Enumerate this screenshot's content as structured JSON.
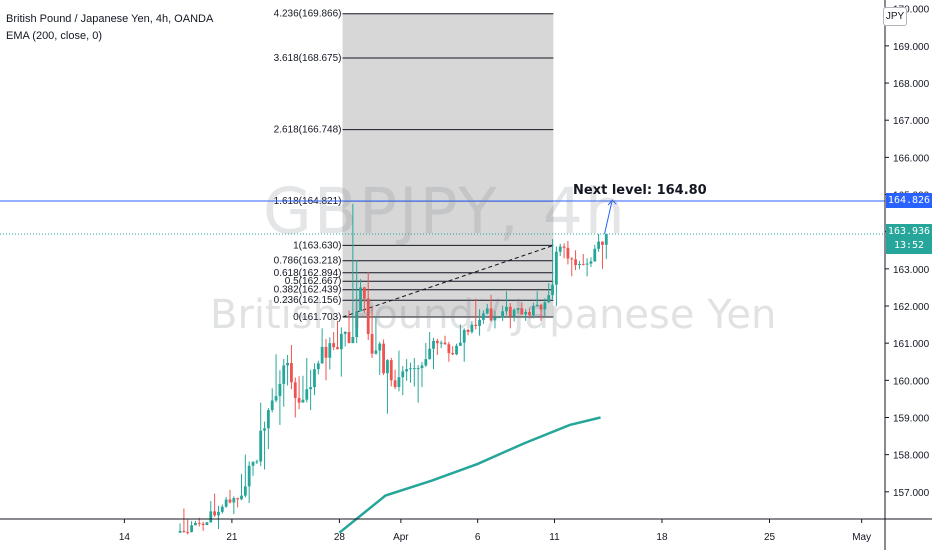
{
  "legend": {
    "title": "British Pound / Japanese Yen, 4h, OANDA",
    "indicator": "EMA (200, close, 0)"
  },
  "currency_badge": "JPY",
  "watermark": {
    "symbol": "GBPJPY, 4h",
    "name": "British Pound / Japanese Yen"
  },
  "annotation": {
    "text": "Next level: 164.80"
  },
  "price_tags": {
    "target": "164.826",
    "last_price": "163.936",
    "countdown": "13:52"
  },
  "colors": {
    "up": "#26a69a",
    "down": "#ef5350",
    "ema": "#26a69a",
    "fib_box": "#c9c9c9",
    "target_line": "#2962ff",
    "axis_text": "#131722"
  },
  "chart_data": {
    "type": "candlestick",
    "y_axis": {
      "ylim": [
        156.08,
        170.1
      ],
      "ticks": [
        157,
        158,
        159,
        160,
        161,
        162,
        163,
        164,
        165,
        166,
        167,
        168,
        169,
        170
      ],
      "tick_labels": [
        "157.000",
        "158.000",
        "159.000",
        "160.000",
        "161.000",
        "162.000",
        "163.000",
        "164.000",
        "165.000",
        "166.000",
        "167.000",
        "168.000",
        "169.000",
        "170.000"
      ]
    },
    "x_axis": {
      "labels": [
        "14",
        "21",
        "28",
        "Apr",
        "6",
        "11",
        "18",
        "25",
        "May"
      ],
      "label_days": [
        -17,
        -10,
        -3,
        1,
        6,
        11,
        18,
        25,
        31
      ]
    },
    "candles_daily_ohlc": [
      {
        "day": -13,
        "o": 155.9,
        "h": 156.55,
        "l": 155.85,
        "c": 156.1
      },
      {
        "day": -12,
        "o": 156.1,
        "h": 156.3,
        "l": 155.95,
        "c": 156.18
      },
      {
        "day": -11,
        "o": 156.18,
        "h": 156.95,
        "l": 156.0,
        "c": 156.6
      },
      {
        "day": -10,
        "o": 156.6,
        "h": 157.05,
        "l": 156.4,
        "c": 156.8
      },
      {
        "day": -9,
        "o": 156.8,
        "h": 158.0,
        "l": 156.7,
        "c": 157.8
      },
      {
        "day": -8,
        "o": 157.8,
        "h": 159.4,
        "l": 157.6,
        "c": 159.2
      },
      {
        "day": -7,
        "o": 159.2,
        "h": 160.7,
        "l": 158.8,
        "c": 160.4
      },
      {
        "day": -6,
        "o": 160.4,
        "h": 160.95,
        "l": 159.0,
        "c": 159.4
      },
      {
        "day": -5,
        "o": 159.4,
        "h": 160.6,
        "l": 159.2,
        "c": 160.3
      },
      {
        "day": -4,
        "o": 160.3,
        "h": 161.4,
        "l": 160.0,
        "c": 161.0
      },
      {
        "day": -3,
        "o": 161.0,
        "h": 161.6,
        "l": 160.1,
        "c": 161.3
      },
      {
        "day": -2,
        "o": 161.3,
        "h": 164.75,
        "l": 161.0,
        "c": 162.5
      },
      {
        "day": -1,
        "o": 162.5,
        "h": 162.9,
        "l": 160.6,
        "c": 160.8
      },
      {
        "day": 0,
        "o": 160.8,
        "h": 161.1,
        "l": 159.1,
        "c": 160.0
      },
      {
        "day": 1,
        "o": 160.0,
        "h": 160.8,
        "l": 159.6,
        "c": 160.3
      },
      {
        "day": 2,
        "o": 160.3,
        "h": 160.6,
        "l": 159.4,
        "c": 160.4
      },
      {
        "day": 3,
        "o": 160.4,
        "h": 161.3,
        "l": 160.3,
        "c": 161.0
      },
      {
        "day": 4,
        "o": 161.0,
        "h": 161.2,
        "l": 160.5,
        "c": 160.7
      },
      {
        "day": 5,
        "o": 160.7,
        "h": 161.5,
        "l": 160.5,
        "c": 161.3
      },
      {
        "day": 6,
        "o": 161.3,
        "h": 162.2,
        "l": 161.2,
        "c": 161.8
      },
      {
        "day": 7,
        "o": 161.8,
        "h": 162.3,
        "l": 161.4,
        "c": 161.7
      },
      {
        "day": 8,
        "o": 161.7,
        "h": 162.4,
        "l": 161.4,
        "c": 161.9
      },
      {
        "day": 9,
        "o": 161.9,
        "h": 162.1,
        "l": 161.6,
        "c": 161.75
      },
      {
        "day": 10,
        "o": 161.75,
        "h": 162.4,
        "l": 161.6,
        "c": 162.1
      },
      {
        "day": 11,
        "o": 162.1,
        "h": 163.8,
        "l": 162.0,
        "c": 163.6
      },
      {
        "day": 12,
        "o": 163.6,
        "h": 163.75,
        "l": 162.8,
        "c": 163.1
      },
      {
        "day": 13,
        "o": 163.1,
        "h": 163.4,
        "l": 162.8,
        "c": 163.2
      },
      {
        "day": 14,
        "o": 163.2,
        "h": 163.94,
        "l": 163.0,
        "c": 163.94
      }
    ],
    "ema200": {
      "name": "EMA (200, close, 0)",
      "points": [
        [
          -3,
          155.9
        ],
        [
          0,
          156.9
        ],
        [
          3,
          157.3
        ],
        [
          6,
          157.75
        ],
        [
          9,
          158.3
        ],
        [
          12,
          158.8
        ],
        [
          14,
          159.0
        ]
      ]
    },
    "fibonacci": {
      "start_day": 0,
      "end_day": 8,
      "levels": [
        {
          "label": "0(161.703)",
          "price": 161.703
        },
        {
          "label": "0.236(162.156)",
          "price": 162.156
        },
        {
          "label": "0.382(162.439)",
          "price": 162.439
        },
        {
          "label": "0.5(162.667)",
          "price": 162.667
        },
        {
          "label": "0.618(162.894)",
          "price": 162.894
        },
        {
          "label": "0.786(163.218)",
          "price": 163.218
        },
        {
          "label": "1(163.630)",
          "price": 163.63
        },
        {
          "label": "1.618(164.821)",
          "price": 164.821
        },
        {
          "label": "2.618(166.748)",
          "price": 166.748
        },
        {
          "label": "3.618(168.675)",
          "price": 168.675
        },
        {
          "label": "4.236(169.866)",
          "price": 169.866
        }
      ],
      "trend_line": [
        [
          0,
          161.703
        ],
        [
          8,
          163.63
        ]
      ]
    },
    "target_line": {
      "price": 164.826
    },
    "last_price_line": {
      "price": 163.936
    },
    "arrow": {
      "from": [
        14,
        163.94
      ],
      "to": [
        14.5,
        164.85
      ]
    }
  }
}
